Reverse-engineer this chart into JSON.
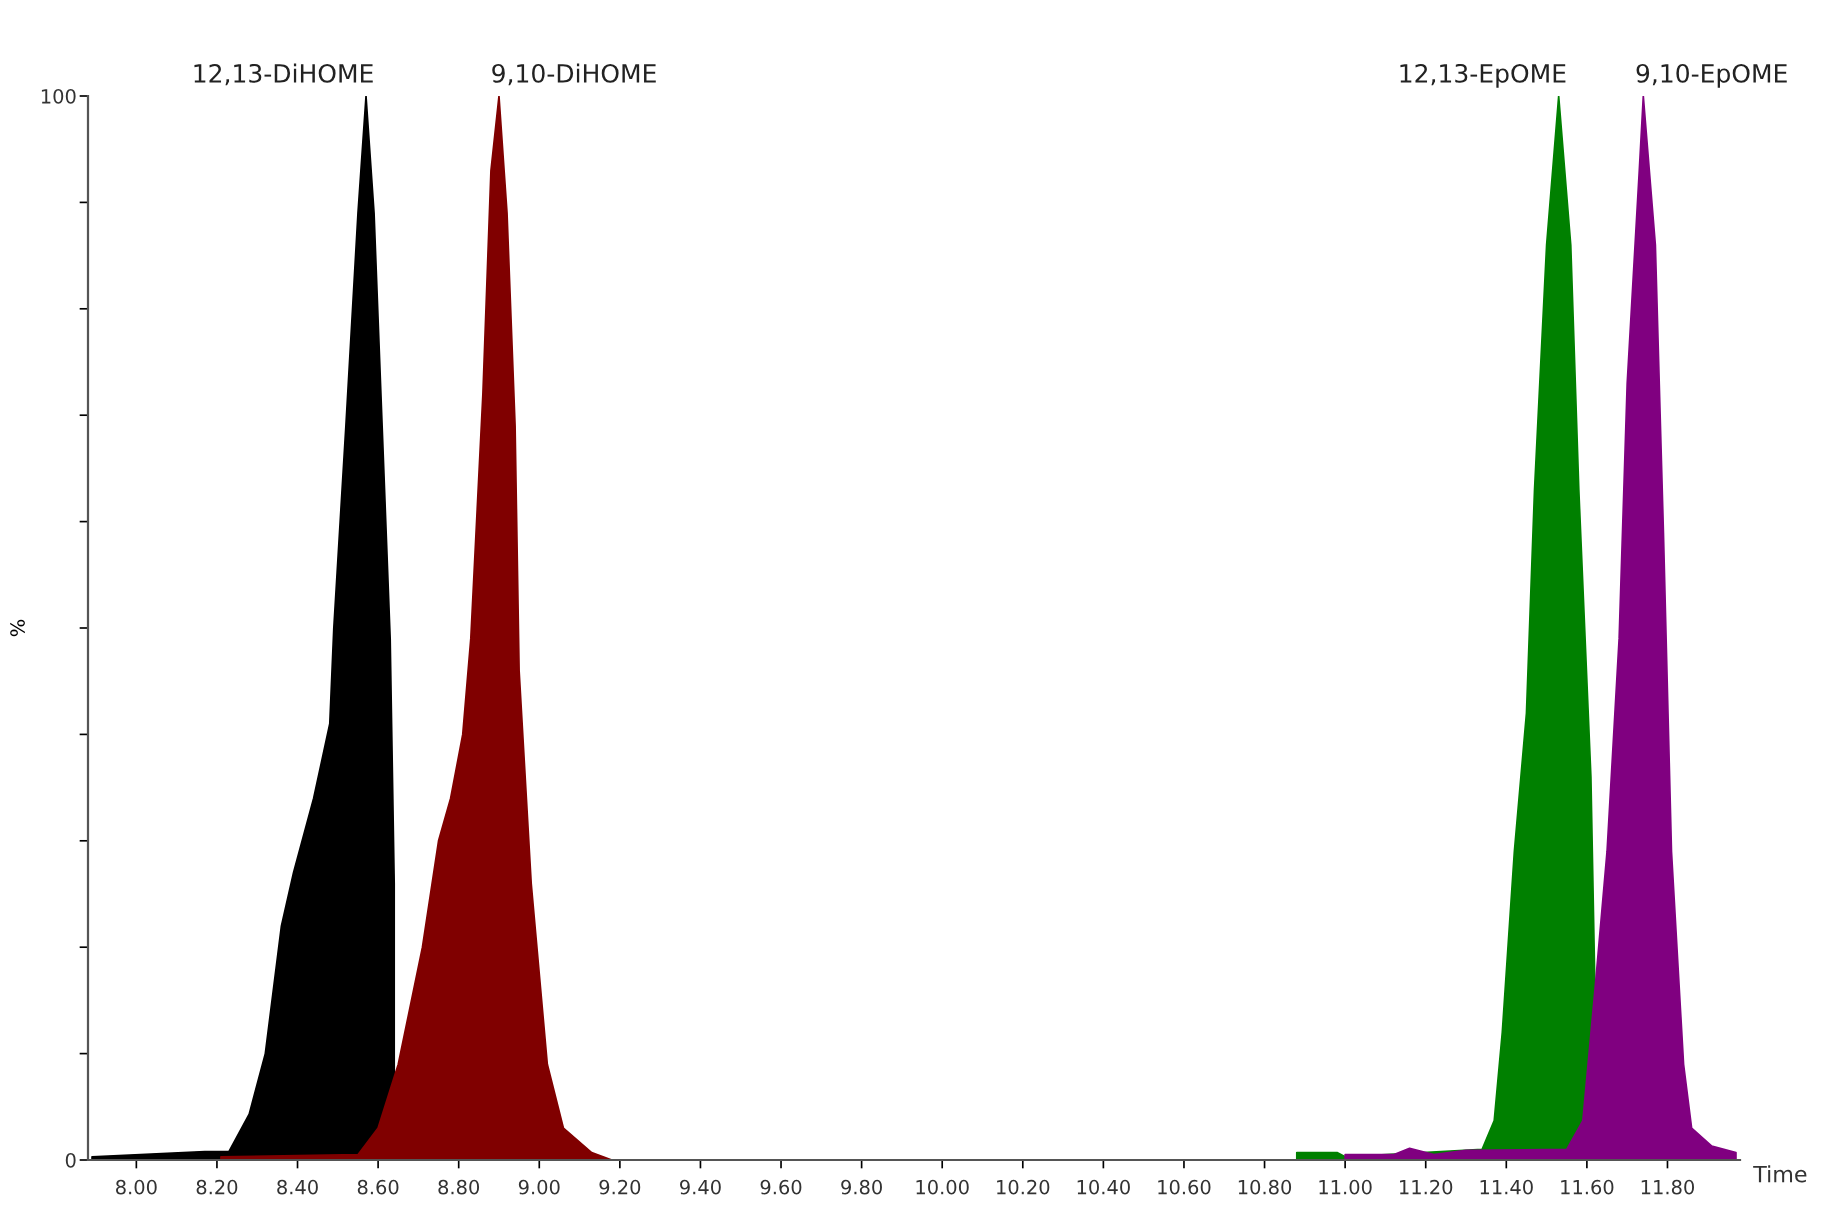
{
  "chart_data": {
    "type": "area",
    "xlabel": "Time",
    "ylabel": "%",
    "xlim": [
      7.88,
      11.98
    ],
    "ylim": [
      0,
      100
    ],
    "xticks": [
      {
        "value": 8.0,
        "label": "8.00"
      },
      {
        "value": 8.2,
        "label": "8.20"
      },
      {
        "value": 8.4,
        "label": "8.40"
      },
      {
        "value": 8.6,
        "label": "8.60"
      },
      {
        "value": 8.8,
        "label": "8.80"
      },
      {
        "value": 9.0,
        "label": "9.00"
      },
      {
        "value": 9.2,
        "label": "9.20"
      },
      {
        "value": 9.4,
        "label": "9.40"
      },
      {
        "value": 9.6,
        "label": "9.60"
      },
      {
        "value": 9.8,
        "label": "9.80"
      },
      {
        "value": 10.0,
        "label": "10.00"
      },
      {
        "value": 10.2,
        "label": "10.20"
      },
      {
        "value": 10.4,
        "label": "10.40"
      },
      {
        "value": 10.6,
        "label": "10.60"
      },
      {
        "value": 10.8,
        "label": "10.80"
      },
      {
        "value": 11.0,
        "label": "11.00"
      },
      {
        "value": 11.2,
        "label": "11.20"
      },
      {
        "value": 11.4,
        "label": "11.40"
      },
      {
        "value": 11.6,
        "label": "11.60"
      },
      {
        "value": 11.8,
        "label": "11.80"
      }
    ],
    "yticks": [
      0,
      {
        "value": 10,
        "label": null
      },
      {
        "value": 20,
        "label": null
      },
      {
        "value": 30,
        "label": null
      },
      {
        "value": 40,
        "label": null
      },
      {
        "value": 50,
        "label": null
      },
      {
        "value": 60,
        "label": null
      },
      {
        "value": 70,
        "label": null
      },
      {
        "value": 80,
        "label": null
      },
      {
        "value": 90,
        "label": null
      },
      100
    ],
    "grid": false,
    "legend": false,
    "series": [
      {
        "name": "12,13-DiHOME",
        "color": "#000000",
        "x": [
          7.89,
          8.17,
          8.23,
          8.28,
          8.32,
          8.36,
          8.39,
          8.44,
          8.48,
          8.49,
          8.52,
          8.55,
          8.57,
          8.59,
          8.61,
          8.63,
          8.64
        ],
        "values": [
          0.3,
          0.8,
          0.8,
          4.3,
          10,
          22,
          27,
          34,
          41,
          50,
          69,
          89,
          100,
          89,
          69,
          49,
          26
        ]
      },
      {
        "name": "9,10-DiHOME",
        "color": "#800000",
        "x": [
          8.21,
          8.55,
          8.6,
          8.65,
          8.71,
          8.75,
          8.78,
          8.81,
          8.83,
          8.86,
          8.88,
          8.9,
          8.92,
          8.94,
          8.95,
          8.98,
          9.02,
          9.06,
          9.13,
          9.18
        ],
        "values": [
          0.3,
          0.5,
          3,
          9,
          20,
          30,
          34,
          40,
          49,
          72,
          93,
          100,
          89,
          69,
          46,
          26,
          9,
          3,
          0.7,
          0
        ]
      },
      {
        "name": "12,13-EpOME",
        "color": "#008000",
        "x": [
          10.88,
          10.98,
          11.0,
          11.34,
          11.37,
          11.39,
          11.42,
          11.45,
          11.47,
          11.5,
          11.53,
          11.56,
          11.58,
          11.61,
          11.62
        ],
        "values": [
          0.7,
          0.7,
          0.3,
          1,
          3.7,
          12,
          29,
          42,
          63,
          86,
          100,
          86,
          63,
          36,
          16
        ]
      },
      {
        "name": "9,10-EpOME",
        "color": "#800080",
        "x": [
          11.0,
          11.12,
          11.16,
          11.22,
          11.3,
          11.55,
          11.59,
          11.62,
          11.65,
          11.68,
          11.7,
          11.73,
          11.74,
          11.77,
          11.79,
          11.81,
          11.84,
          11.86,
          11.91,
          11.97
        ],
        "values": [
          0.5,
          0.5,
          1.1,
          0.5,
          0.9,
          1,
          3.7,
          16,
          29,
          49,
          73,
          93,
          100,
          86,
          59,
          29,
          9,
          3,
          1.3,
          0.7
        ]
      }
    ]
  }
}
